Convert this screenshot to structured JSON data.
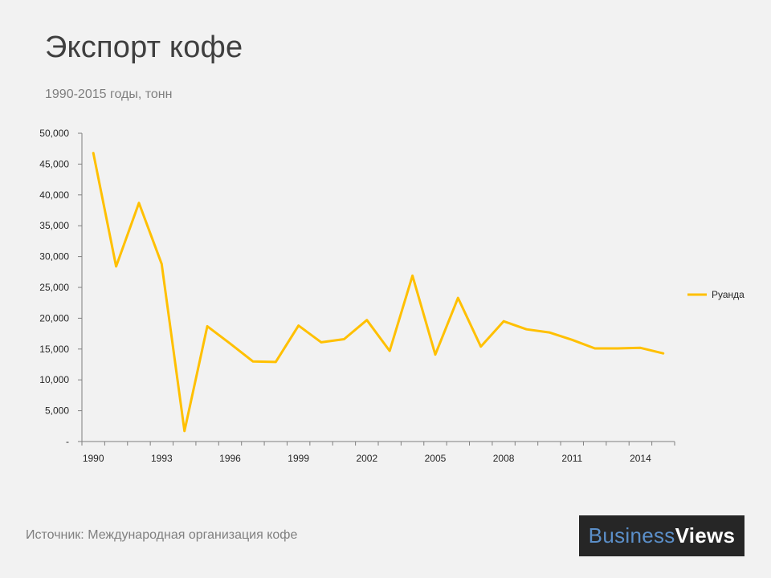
{
  "title": "Экспорт кофе",
  "subtitle": "1990-2015 годы, тонн",
  "source": "Источник: Международная организация кофе",
  "logo": {
    "part1": "Business",
    "part2": "Views"
  },
  "colors": {
    "series": "#ffc000",
    "axis": "#7f7f7f",
    "text": "#262626",
    "logo_bg": "#262626",
    "logo_blue": "#5b8fc9"
  },
  "chart_data": {
    "type": "line",
    "title": "Экспорт кофе",
    "subtitle": "1990-2015 годы, тонн",
    "xlabel": "",
    "ylabel": "",
    "ylim": [
      0,
      50000
    ],
    "xlim": [
      1990,
      2015
    ],
    "grid": false,
    "legend": "right",
    "y_tick_values": [
      0,
      5000,
      10000,
      15000,
      20000,
      25000,
      30000,
      35000,
      40000,
      45000,
      50000
    ],
    "y_tick_labels": [
      "-",
      "5,000",
      "10,000",
      "15,000",
      "20,000",
      "25,000",
      "30,000",
      "35,000",
      "40,000",
      "45,000",
      "50,000"
    ],
    "x_tick_labels": [
      "1990",
      "1993",
      "1996",
      "1999",
      "2002",
      "2005",
      "2008",
      "2011",
      "2014"
    ],
    "x": [
      1990,
      1991,
      1992,
      1993,
      1994,
      1995,
      1996,
      1997,
      1998,
      1999,
      2000,
      2001,
      2002,
      2003,
      2004,
      2005,
      2006,
      2007,
      2008,
      2009,
      2010,
      2011,
      2012,
      2013,
      2014,
      2015
    ],
    "series": [
      {
        "name": "Руанда",
        "color": "#ffc000",
        "values": [
          46800,
          28400,
          38700,
          28800,
          1700,
          18700,
          15900,
          13000,
          12900,
          18800,
          16100,
          16600,
          19700,
          14700,
          26900,
          14100,
          23300,
          15400,
          19500,
          18200,
          17700,
          16500,
          15100,
          15100,
          15200,
          14300
        ]
      }
    ]
  }
}
